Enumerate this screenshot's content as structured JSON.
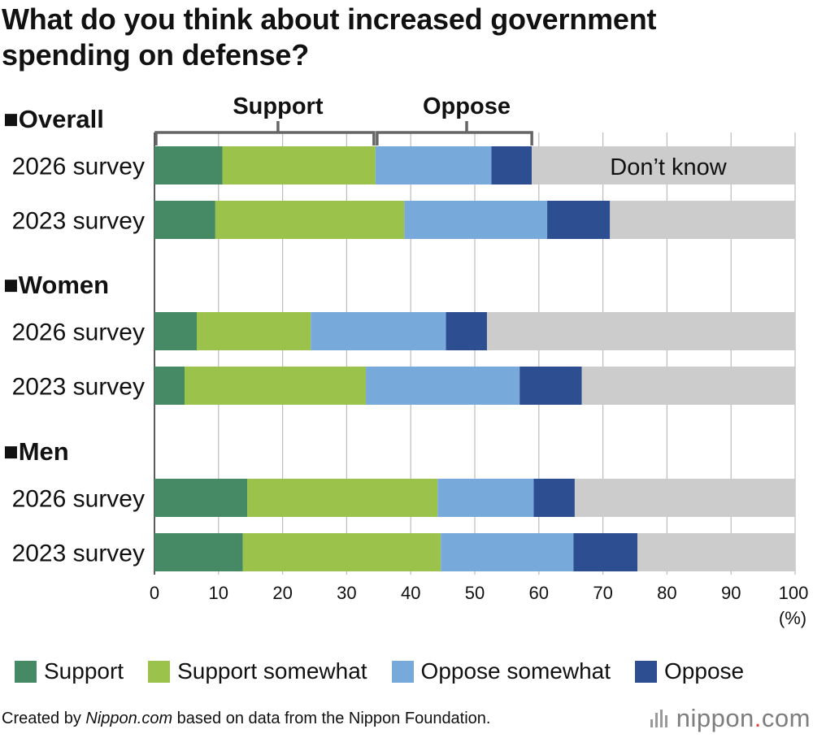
{
  "title": {
    "line1": "What do you think about increased government",
    "line2": "spending on defense?"
  },
  "brackets": {
    "support": "Support",
    "oppose": "Oppose"
  },
  "dont_know_label": "Don’t know",
  "colors": {
    "Support": "#468a65",
    "Support somewhat": "#9bc24b",
    "Oppose somewhat": "#78a9db",
    "Oppose": "#2d4f92",
    "Don't know": "#cccccc",
    "grid": "#bbbbbb"
  },
  "chart_data": {
    "type": "bar",
    "orientation": "horizontal-stacked",
    "x_ticks": [
      "0",
      "10",
      "20",
      "30",
      "40",
      "50",
      "60",
      "70",
      "80",
      "90",
      "100"
    ],
    "xunit": "(%)",
    "xlim": [
      0,
      100
    ],
    "grid": true,
    "series_names": [
      "Support",
      "Support somewhat",
      "Oppose somewhat",
      "Oppose",
      "Don't know"
    ],
    "groups": [
      {
        "name": "■Overall",
        "rows": [
          {
            "label": "2026 survey",
            "values": [
              10.6,
              23.9,
              18.1,
              6.3,
              41.1
            ]
          },
          {
            "label": "2023 survey",
            "values": [
              9.5,
              29.5,
              22.3,
              9.8,
              28.9
            ]
          }
        ]
      },
      {
        "name": "■Women",
        "rows": [
          {
            "label": "2026 survey",
            "values": [
              6.6,
              17.8,
              21.1,
              6.4,
              48.1
            ]
          },
          {
            "label": "2023 survey",
            "values": [
              4.7,
              28.3,
              24.0,
              9.7,
              33.3
            ]
          }
        ]
      },
      {
        "name": "■Men",
        "rows": [
          {
            "label": "2026 survey",
            "values": [
              14.5,
              29.7,
              15.0,
              6.4,
              34.4
            ]
          },
          {
            "label": "2023 survey",
            "values": [
              13.8,
              30.9,
              20.7,
              10.0,
              24.6
            ]
          }
        ]
      }
    ]
  },
  "legend": [
    {
      "label": "Support",
      "color": "#468a65"
    },
    {
      "label": "Support somewhat",
      "color": "#9bc24b"
    },
    {
      "label": "Oppose somewhat",
      "color": "#78a9db"
    },
    {
      "label": "Oppose",
      "color": "#2d4f92"
    }
  ],
  "footer": {
    "prefix": "Created by ",
    "source_site": "Nippon.com",
    "suffix": " based on data from the Nippon Foundation."
  },
  "logo": {
    "main": "nippon",
    "dot": ".",
    "tld": "com"
  }
}
